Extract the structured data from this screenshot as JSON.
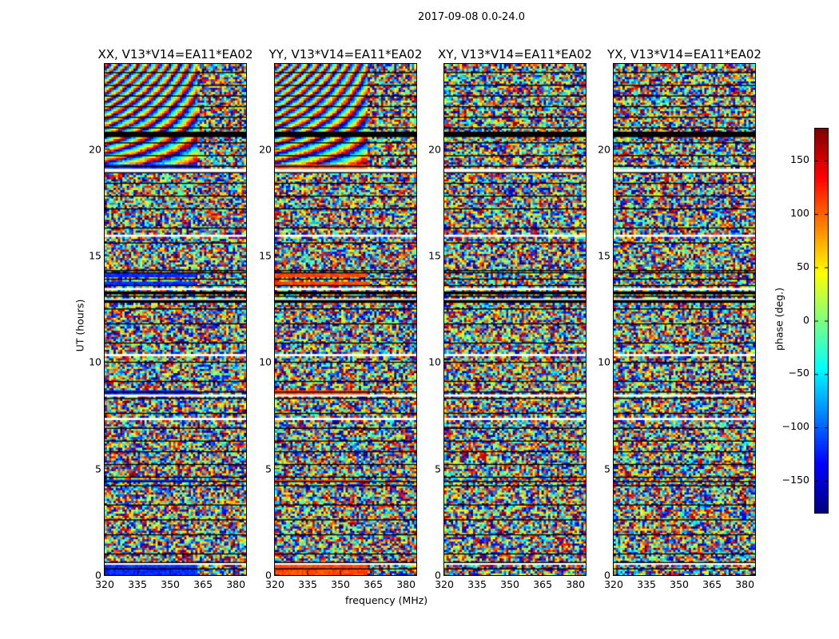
{
  "chart_data": {
    "type": "heatmap",
    "suptitle": "2017-09-08 0.0-24.0",
    "panels": [
      {
        "title": "XX, V13*V14=EA11*EA02",
        "mode": "fringe",
        "solid_phase": -120
      },
      {
        "title": "YY, V13*V14=EA11*EA02",
        "mode": "fringe",
        "solid_phase": 110
      },
      {
        "title": "XY, V13*V14=EA11*EA02",
        "mode": "noise",
        "solid_phase": null
      },
      {
        "title": "YX, V13*V14=EA11*EA02",
        "mode": "noise",
        "solid_phase": null
      }
    ],
    "xlabel": "frequency (MHz)",
    "ylabel": "UT (hours)",
    "xlim": [
      320,
      384.7
    ],
    "ylim": [
      0,
      24
    ],
    "xticks": [
      "320",
      "335",
      "350",
      "365",
      "380"
    ],
    "yticks": [
      "0",
      "5",
      "10",
      "15",
      "20"
    ],
    "colorbar": {
      "label": "phase (deg.)",
      "range": [
        -180,
        180
      ],
      "ticks": [
        "150",
        "100",
        "50",
        "0",
        "−50",
        "−100",
        "−150"
      ],
      "colormap": "jet"
    },
    "scan_boundaries_hours": [
      0.3,
      0.6,
      1.0,
      1.9,
      2.6,
      3.3,
      4.2,
      4.4,
      4.6,
      5.2,
      5.8,
      6.3,
      6.9,
      7.6,
      8.3,
      8.6,
      9.1,
      10.0,
      10.9,
      11.8,
      12.5,
      12.9,
      13.1,
      13.3,
      13.6,
      13.9,
      14.2,
      14.3,
      15.6,
      16.3,
      17.2,
      17.8,
      18.4,
      18.9,
      19.2,
      19.7,
      20.3,
      20.6,
      20.8,
      21.0,
      21.5,
      22.0,
      22.5,
      23.0,
      23.6
    ],
    "flagged_hours": [
      [
        0.45,
        0.55
      ],
      [
        8.4,
        8.5
      ],
      [
        7.35,
        7.4
      ],
      [
        18.95,
        19.15
      ],
      [
        13.45,
        13.55
      ],
      [
        12.95,
        13.0
      ],
      [
        15.95,
        16.0
      ],
      [
        10.35,
        10.4
      ],
      [
        3.5,
        3.55
      ],
      [
        2.1,
        2.15
      ],
      [
        22.3,
        22.35
      ],
      [
        6.0,
        6.05
      ],
      [
        1.2,
        1.25
      ]
    ],
    "solid_hours": [
      [
        0.0,
        0.45
      ],
      [
        8.5,
        8.7
      ],
      [
        19.15,
        19.3
      ],
      [
        13.6,
        13.8
      ],
      [
        14.05,
        14.2
      ],
      [
        4.45,
        4.55
      ]
    ],
    "dead_hours": [
      [
        20.65,
        20.85
      ],
      [
        12.85,
        12.95
      ],
      [
        13.25,
        13.35
      ]
    ]
  }
}
